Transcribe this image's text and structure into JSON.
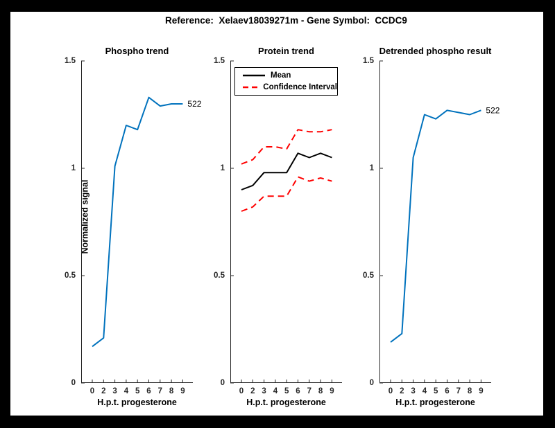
{
  "figure_title": "Reference:  Xelaev18039271m - Gene Symbol:  CCDC9",
  "colors": {
    "background": "#000000",
    "canvas": "#ffffff",
    "axis": "#262626",
    "blue": "#0072BD",
    "red": "#ff0000",
    "black": "#000000"
  },
  "chart_data": [
    {
      "type": "line",
      "title": "Phospho trend",
      "xlabel": "H.p.t. progesterone",
      "ylabel": "Normalized signal",
      "x_tick_labels": [
        "0",
        "2",
        "3",
        "4",
        "5",
        "6",
        "7",
        "8",
        "9"
      ],
      "yticks": [
        0,
        0.5,
        1,
        1.5
      ],
      "ylim": [
        0,
        1.5
      ],
      "grid": false,
      "series": [
        {
          "name": "phospho",
          "color": "#0072BD",
          "style": "solid",
          "width": 2,
          "values": [
            0.17,
            0.21,
            1.01,
            1.2,
            1.18,
            1.33,
            1.29,
            1.3,
            1.3
          ],
          "end_label": "522"
        }
      ]
    },
    {
      "type": "line",
      "title": "Protein trend",
      "xlabel": "H.p.t. progesterone",
      "ylabel": "",
      "x_tick_labels": [
        "0",
        "2",
        "3",
        "4",
        "5",
        "6",
        "7",
        "8",
        "9"
      ],
      "yticks": [
        0,
        0.5,
        1,
        1.5
      ],
      "ylim": [
        0,
        1.5
      ],
      "grid": false,
      "legend_position": "top-left",
      "legend": [
        {
          "label": "Mean",
          "color": "#000000",
          "style": "solid"
        },
        {
          "label": "Confidence Interval",
          "color": "#ff0000",
          "style": "dashed"
        }
      ],
      "series": [
        {
          "name": "mean",
          "color": "#000000",
          "style": "solid",
          "width": 2,
          "values": [
            0.9,
            0.92,
            0.98,
            0.98,
            0.98,
            1.07,
            1.05,
            1.07,
            1.05
          ]
        },
        {
          "name": "ci-upper",
          "color": "#ff0000",
          "style": "dashed",
          "width": 2,
          "values": [
            1.02,
            1.04,
            1.1,
            1.1,
            1.09,
            1.18,
            1.17,
            1.17,
            1.18
          ]
        },
        {
          "name": "ci-lower",
          "color": "#ff0000",
          "style": "dashed",
          "width": 2,
          "values": [
            0.8,
            0.82,
            0.87,
            0.87,
            0.87,
            0.96,
            0.94,
            0.955,
            0.94
          ]
        }
      ]
    },
    {
      "type": "line",
      "title": "Detrended phospho result",
      "xlabel": "H.p.t. progesterone",
      "ylabel": "",
      "x_tick_labels": [
        "0",
        "2",
        "3",
        "4",
        "5",
        "6",
        "7",
        "8",
        "9"
      ],
      "yticks": [
        0,
        0.5,
        1,
        1.5
      ],
      "ylim": [
        0,
        1.5
      ],
      "grid": false,
      "series": [
        {
          "name": "detrended",
          "color": "#0072BD",
          "style": "solid",
          "width": 2,
          "values": [
            0.19,
            0.23,
            1.05,
            1.25,
            1.23,
            1.27,
            1.26,
            1.25,
            1.27
          ],
          "end_label": "522"
        }
      ]
    }
  ]
}
